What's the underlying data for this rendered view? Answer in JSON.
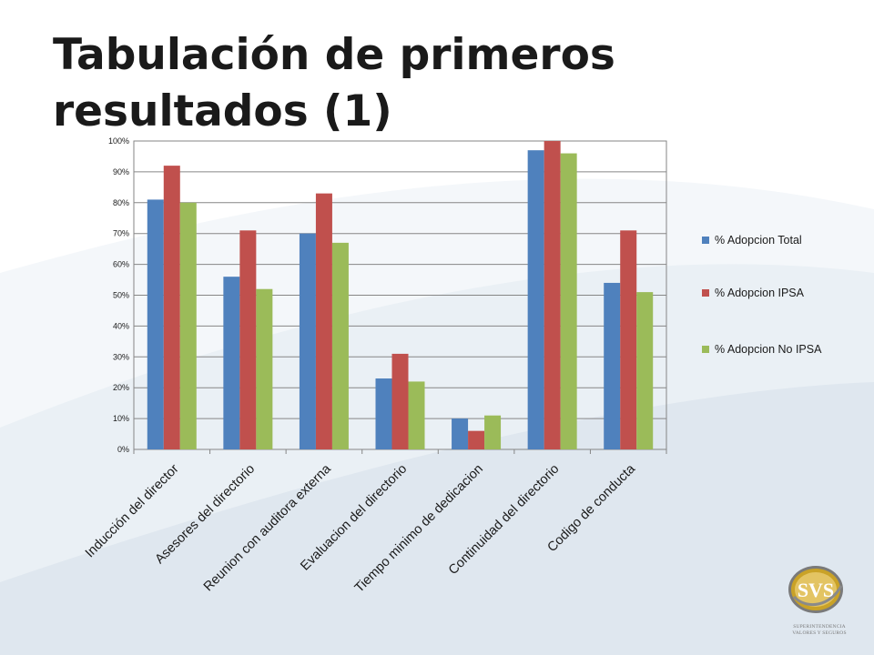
{
  "slide": {
    "title": "Tabulación de primeros resultados (1)"
  },
  "logo": {
    "text": "SVS",
    "caption": "SUPERINTENDENCIA VALORES Y SEGUROS"
  },
  "colors": {
    "bg_swoosh": "#dfe7ef",
    "gold": "#c9a227"
  },
  "chart_data": {
    "type": "bar",
    "title": "",
    "xlabel": "",
    "ylabel": "",
    "ylim": [
      0,
      1
    ],
    "yticks": [
      0,
      0.1,
      0.2,
      0.3,
      0.4,
      0.5,
      0.6,
      0.7,
      0.8,
      0.9,
      1.0
    ],
    "ytick_labels": [
      "0%",
      "10%",
      "20%",
      "30%",
      "40%",
      "50%",
      "60%",
      "70%",
      "80%",
      "90%",
      "100%"
    ],
    "grid": true,
    "legend_position": "right",
    "categories": [
      "Inducción del director",
      "Asesores del directorio",
      "Reunion con auditora externa",
      "Evaluacion del directorio",
      "Tiempo minimo de dedicacion",
      "Continuidad del directorio",
      "Codigo de conducta"
    ],
    "series": [
      {
        "name": "% Adopcion Total",
        "color": "#4f81bd",
        "values": [
          0.81,
          0.56,
          0.7,
          0.23,
          0.1,
          0.97,
          0.54
        ]
      },
      {
        "name": "% Adopcion IPSA",
        "color": "#c0504d",
        "values": [
          0.92,
          0.71,
          0.83,
          0.31,
          0.06,
          1.0,
          0.71
        ]
      },
      {
        "name": "% Adopcion No IPSA",
        "color": "#9bbb59",
        "values": [
          0.8,
          0.52,
          0.67,
          0.22,
          0.11,
          0.96,
          0.51
        ]
      }
    ]
  }
}
